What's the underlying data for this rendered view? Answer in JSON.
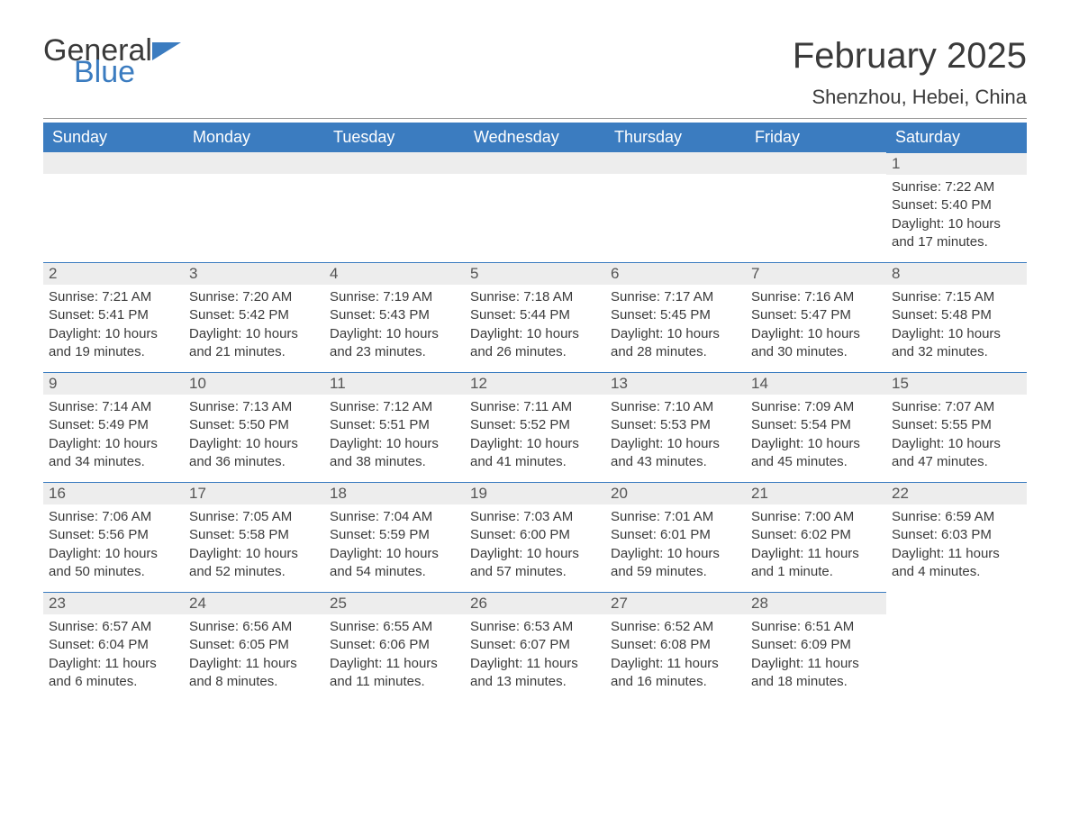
{
  "logo": {
    "text1": "General",
    "text2": "Blue"
  },
  "title": "February 2025",
  "location": "Shenzhou, Hebei, China",
  "colors": {
    "header_bg": "#3b7cc0",
    "header_text": "#ffffff",
    "daynum_bg": "#ededed",
    "daynum_border": "#3b7cc0",
    "text": "#3a3a3a",
    "background": "#ffffff"
  },
  "weekdays": [
    "Sunday",
    "Monday",
    "Tuesday",
    "Wednesday",
    "Thursday",
    "Friday",
    "Saturday"
  ],
  "grid": [
    [
      {
        "blank": true
      },
      {
        "blank": true
      },
      {
        "blank": true
      },
      {
        "blank": true
      },
      {
        "blank": true
      },
      {
        "blank": true
      },
      {
        "day": "1",
        "sunrise": "Sunrise: 7:22 AM",
        "sunset": "Sunset: 5:40 PM",
        "daylight": "Daylight: 10 hours and 17 minutes."
      }
    ],
    [
      {
        "day": "2",
        "sunrise": "Sunrise: 7:21 AM",
        "sunset": "Sunset: 5:41 PM",
        "daylight": "Daylight: 10 hours and 19 minutes."
      },
      {
        "day": "3",
        "sunrise": "Sunrise: 7:20 AM",
        "sunset": "Sunset: 5:42 PM",
        "daylight": "Daylight: 10 hours and 21 minutes."
      },
      {
        "day": "4",
        "sunrise": "Sunrise: 7:19 AM",
        "sunset": "Sunset: 5:43 PM",
        "daylight": "Daylight: 10 hours and 23 minutes."
      },
      {
        "day": "5",
        "sunrise": "Sunrise: 7:18 AM",
        "sunset": "Sunset: 5:44 PM",
        "daylight": "Daylight: 10 hours and 26 minutes."
      },
      {
        "day": "6",
        "sunrise": "Sunrise: 7:17 AM",
        "sunset": "Sunset: 5:45 PM",
        "daylight": "Daylight: 10 hours and 28 minutes."
      },
      {
        "day": "7",
        "sunrise": "Sunrise: 7:16 AM",
        "sunset": "Sunset: 5:47 PM",
        "daylight": "Daylight: 10 hours and 30 minutes."
      },
      {
        "day": "8",
        "sunrise": "Sunrise: 7:15 AM",
        "sunset": "Sunset: 5:48 PM",
        "daylight": "Daylight: 10 hours and 32 minutes."
      }
    ],
    [
      {
        "day": "9",
        "sunrise": "Sunrise: 7:14 AM",
        "sunset": "Sunset: 5:49 PM",
        "daylight": "Daylight: 10 hours and 34 minutes."
      },
      {
        "day": "10",
        "sunrise": "Sunrise: 7:13 AM",
        "sunset": "Sunset: 5:50 PM",
        "daylight": "Daylight: 10 hours and 36 minutes."
      },
      {
        "day": "11",
        "sunrise": "Sunrise: 7:12 AM",
        "sunset": "Sunset: 5:51 PM",
        "daylight": "Daylight: 10 hours and 38 minutes."
      },
      {
        "day": "12",
        "sunrise": "Sunrise: 7:11 AM",
        "sunset": "Sunset: 5:52 PM",
        "daylight": "Daylight: 10 hours and 41 minutes."
      },
      {
        "day": "13",
        "sunrise": "Sunrise: 7:10 AM",
        "sunset": "Sunset: 5:53 PM",
        "daylight": "Daylight: 10 hours and 43 minutes."
      },
      {
        "day": "14",
        "sunrise": "Sunrise: 7:09 AM",
        "sunset": "Sunset: 5:54 PM",
        "daylight": "Daylight: 10 hours and 45 minutes."
      },
      {
        "day": "15",
        "sunrise": "Sunrise: 7:07 AM",
        "sunset": "Sunset: 5:55 PM",
        "daylight": "Daylight: 10 hours and 47 minutes."
      }
    ],
    [
      {
        "day": "16",
        "sunrise": "Sunrise: 7:06 AM",
        "sunset": "Sunset: 5:56 PM",
        "daylight": "Daylight: 10 hours and 50 minutes."
      },
      {
        "day": "17",
        "sunrise": "Sunrise: 7:05 AM",
        "sunset": "Sunset: 5:58 PM",
        "daylight": "Daylight: 10 hours and 52 minutes."
      },
      {
        "day": "18",
        "sunrise": "Sunrise: 7:04 AM",
        "sunset": "Sunset: 5:59 PM",
        "daylight": "Daylight: 10 hours and 54 minutes."
      },
      {
        "day": "19",
        "sunrise": "Sunrise: 7:03 AM",
        "sunset": "Sunset: 6:00 PM",
        "daylight": "Daylight: 10 hours and 57 minutes."
      },
      {
        "day": "20",
        "sunrise": "Sunrise: 7:01 AM",
        "sunset": "Sunset: 6:01 PM",
        "daylight": "Daylight: 10 hours and 59 minutes."
      },
      {
        "day": "21",
        "sunrise": "Sunrise: 7:00 AM",
        "sunset": "Sunset: 6:02 PM",
        "daylight": "Daylight: 11 hours and 1 minute."
      },
      {
        "day": "22",
        "sunrise": "Sunrise: 6:59 AM",
        "sunset": "Sunset: 6:03 PM",
        "daylight": "Daylight: 11 hours and 4 minutes."
      }
    ],
    [
      {
        "day": "23",
        "sunrise": "Sunrise: 6:57 AM",
        "sunset": "Sunset: 6:04 PM",
        "daylight": "Daylight: 11 hours and 6 minutes."
      },
      {
        "day": "24",
        "sunrise": "Sunrise: 6:56 AM",
        "sunset": "Sunset: 6:05 PM",
        "daylight": "Daylight: 11 hours and 8 minutes."
      },
      {
        "day": "25",
        "sunrise": "Sunrise: 6:55 AM",
        "sunset": "Sunset: 6:06 PM",
        "daylight": "Daylight: 11 hours and 11 minutes."
      },
      {
        "day": "26",
        "sunrise": "Sunrise: 6:53 AM",
        "sunset": "Sunset: 6:07 PM",
        "daylight": "Daylight: 11 hours and 13 minutes."
      },
      {
        "day": "27",
        "sunrise": "Sunrise: 6:52 AM",
        "sunset": "Sunset: 6:08 PM",
        "daylight": "Daylight: 11 hours and 16 minutes."
      },
      {
        "day": "28",
        "sunrise": "Sunrise: 6:51 AM",
        "sunset": "Sunset: 6:09 PM",
        "daylight": "Daylight: 11 hours and 18 minutes."
      },
      {
        "blank": true,
        "noBar": true
      }
    ]
  ]
}
